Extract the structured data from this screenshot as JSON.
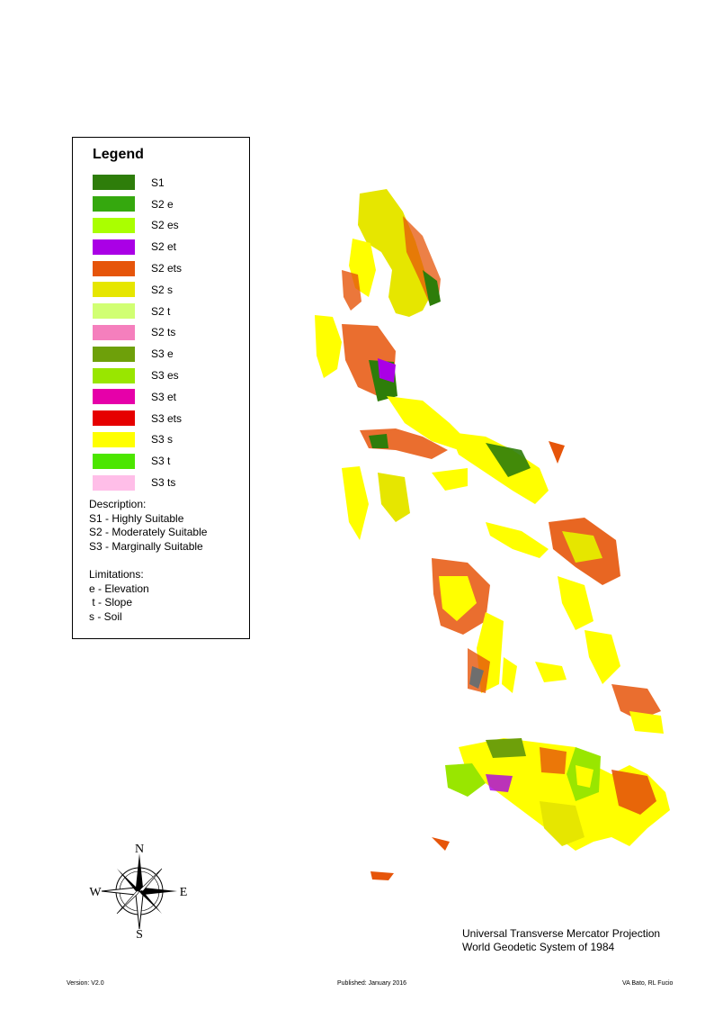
{
  "legend": {
    "title": "Legend",
    "items": [
      {
        "label": "S1",
        "color": "#2e7d0a"
      },
      {
        "label": "S2 e",
        "color": "#35a80e"
      },
      {
        "label": "S2 es",
        "color": "#aaff00"
      },
      {
        "label": "S2 et",
        "color": "#aa00e6"
      },
      {
        "label": "S2 ets",
        "color": "#e6550a"
      },
      {
        "label": "S2 s",
        "color": "#e6e600"
      },
      {
        "label": "S2 t",
        "color": "#d1ff73"
      },
      {
        "label": "S2 ts",
        "color": "#f57fbd"
      },
      {
        "label": "S3 e",
        "color": "#6ea00a"
      },
      {
        "label": "S3 es",
        "color": "#99e600"
      },
      {
        "label": "S3 et",
        "color": "#e600a9"
      },
      {
        "label": "S3 ets",
        "color": "#e60000"
      },
      {
        "label": "S3 s",
        "color": "#ffff00"
      },
      {
        "label": "S3 t",
        "color": "#4ce600"
      },
      {
        "label": "S3 ts",
        "color": "#ffbee8"
      }
    ],
    "description_title": "Description:",
    "descriptions": [
      "S1 - Highly Suitable",
      "S2 - Moderately Suitable",
      "S3 - Marginally Suitable"
    ],
    "limitations_title": "Limitations:",
    "limitations": [
      "e - Elevation",
      " t - Slope",
      "s - Soil"
    ]
  },
  "compass": {
    "n": "N",
    "s": "S",
    "e": "E",
    "w": "W"
  },
  "projection": {
    "line1": "Universal Transverse Mercator Projection",
    "line2": "World Geodetic System of 1984"
  },
  "footer": {
    "version": "Version: V2.0",
    "published": "Published: January 2016",
    "authors": "VA Bato, RL Fucio"
  }
}
